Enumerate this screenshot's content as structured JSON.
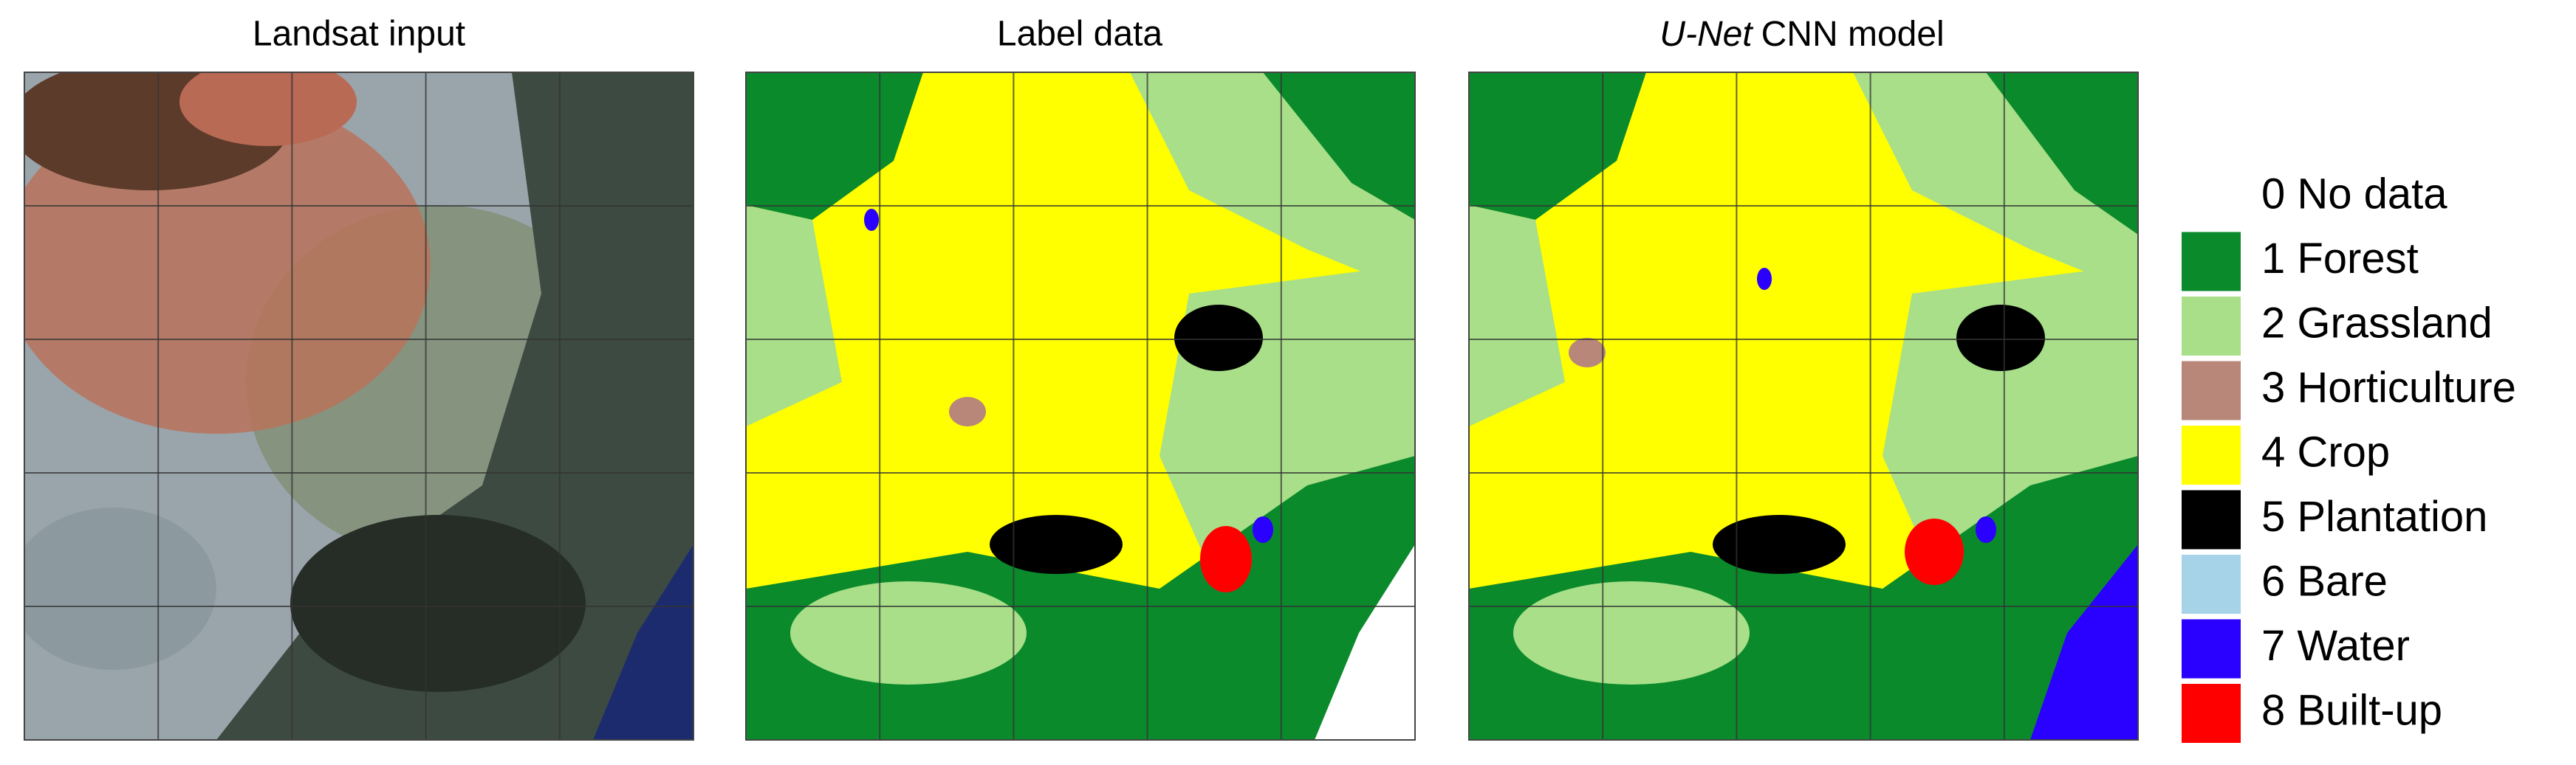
{
  "panels": [
    {
      "title": "Landsat input"
    },
    {
      "title": "Label data"
    },
    {
      "title_italic": "U-Net",
      "title": "CNN model"
    }
  ],
  "legend": [
    {
      "label": "0 No data",
      "color": "#ffffff"
    },
    {
      "label": "1 Forest",
      "color": "#0b8a2c"
    },
    {
      "label": "2 Grassland",
      "color": "#a8df88"
    },
    {
      "label": "3 Horticulture",
      "color": "#b9877a"
    },
    {
      "label": "4 Crop",
      "color": "#ffff00"
    },
    {
      "label": "5 Plantation",
      "color": "#000000"
    },
    {
      "label": "6 Bare",
      "color": "#a6d3e8"
    },
    {
      "label": "7 Water",
      "color": "#2a00ff"
    },
    {
      "label": "8 Built-up",
      "color": "#ff0000"
    }
  ]
}
